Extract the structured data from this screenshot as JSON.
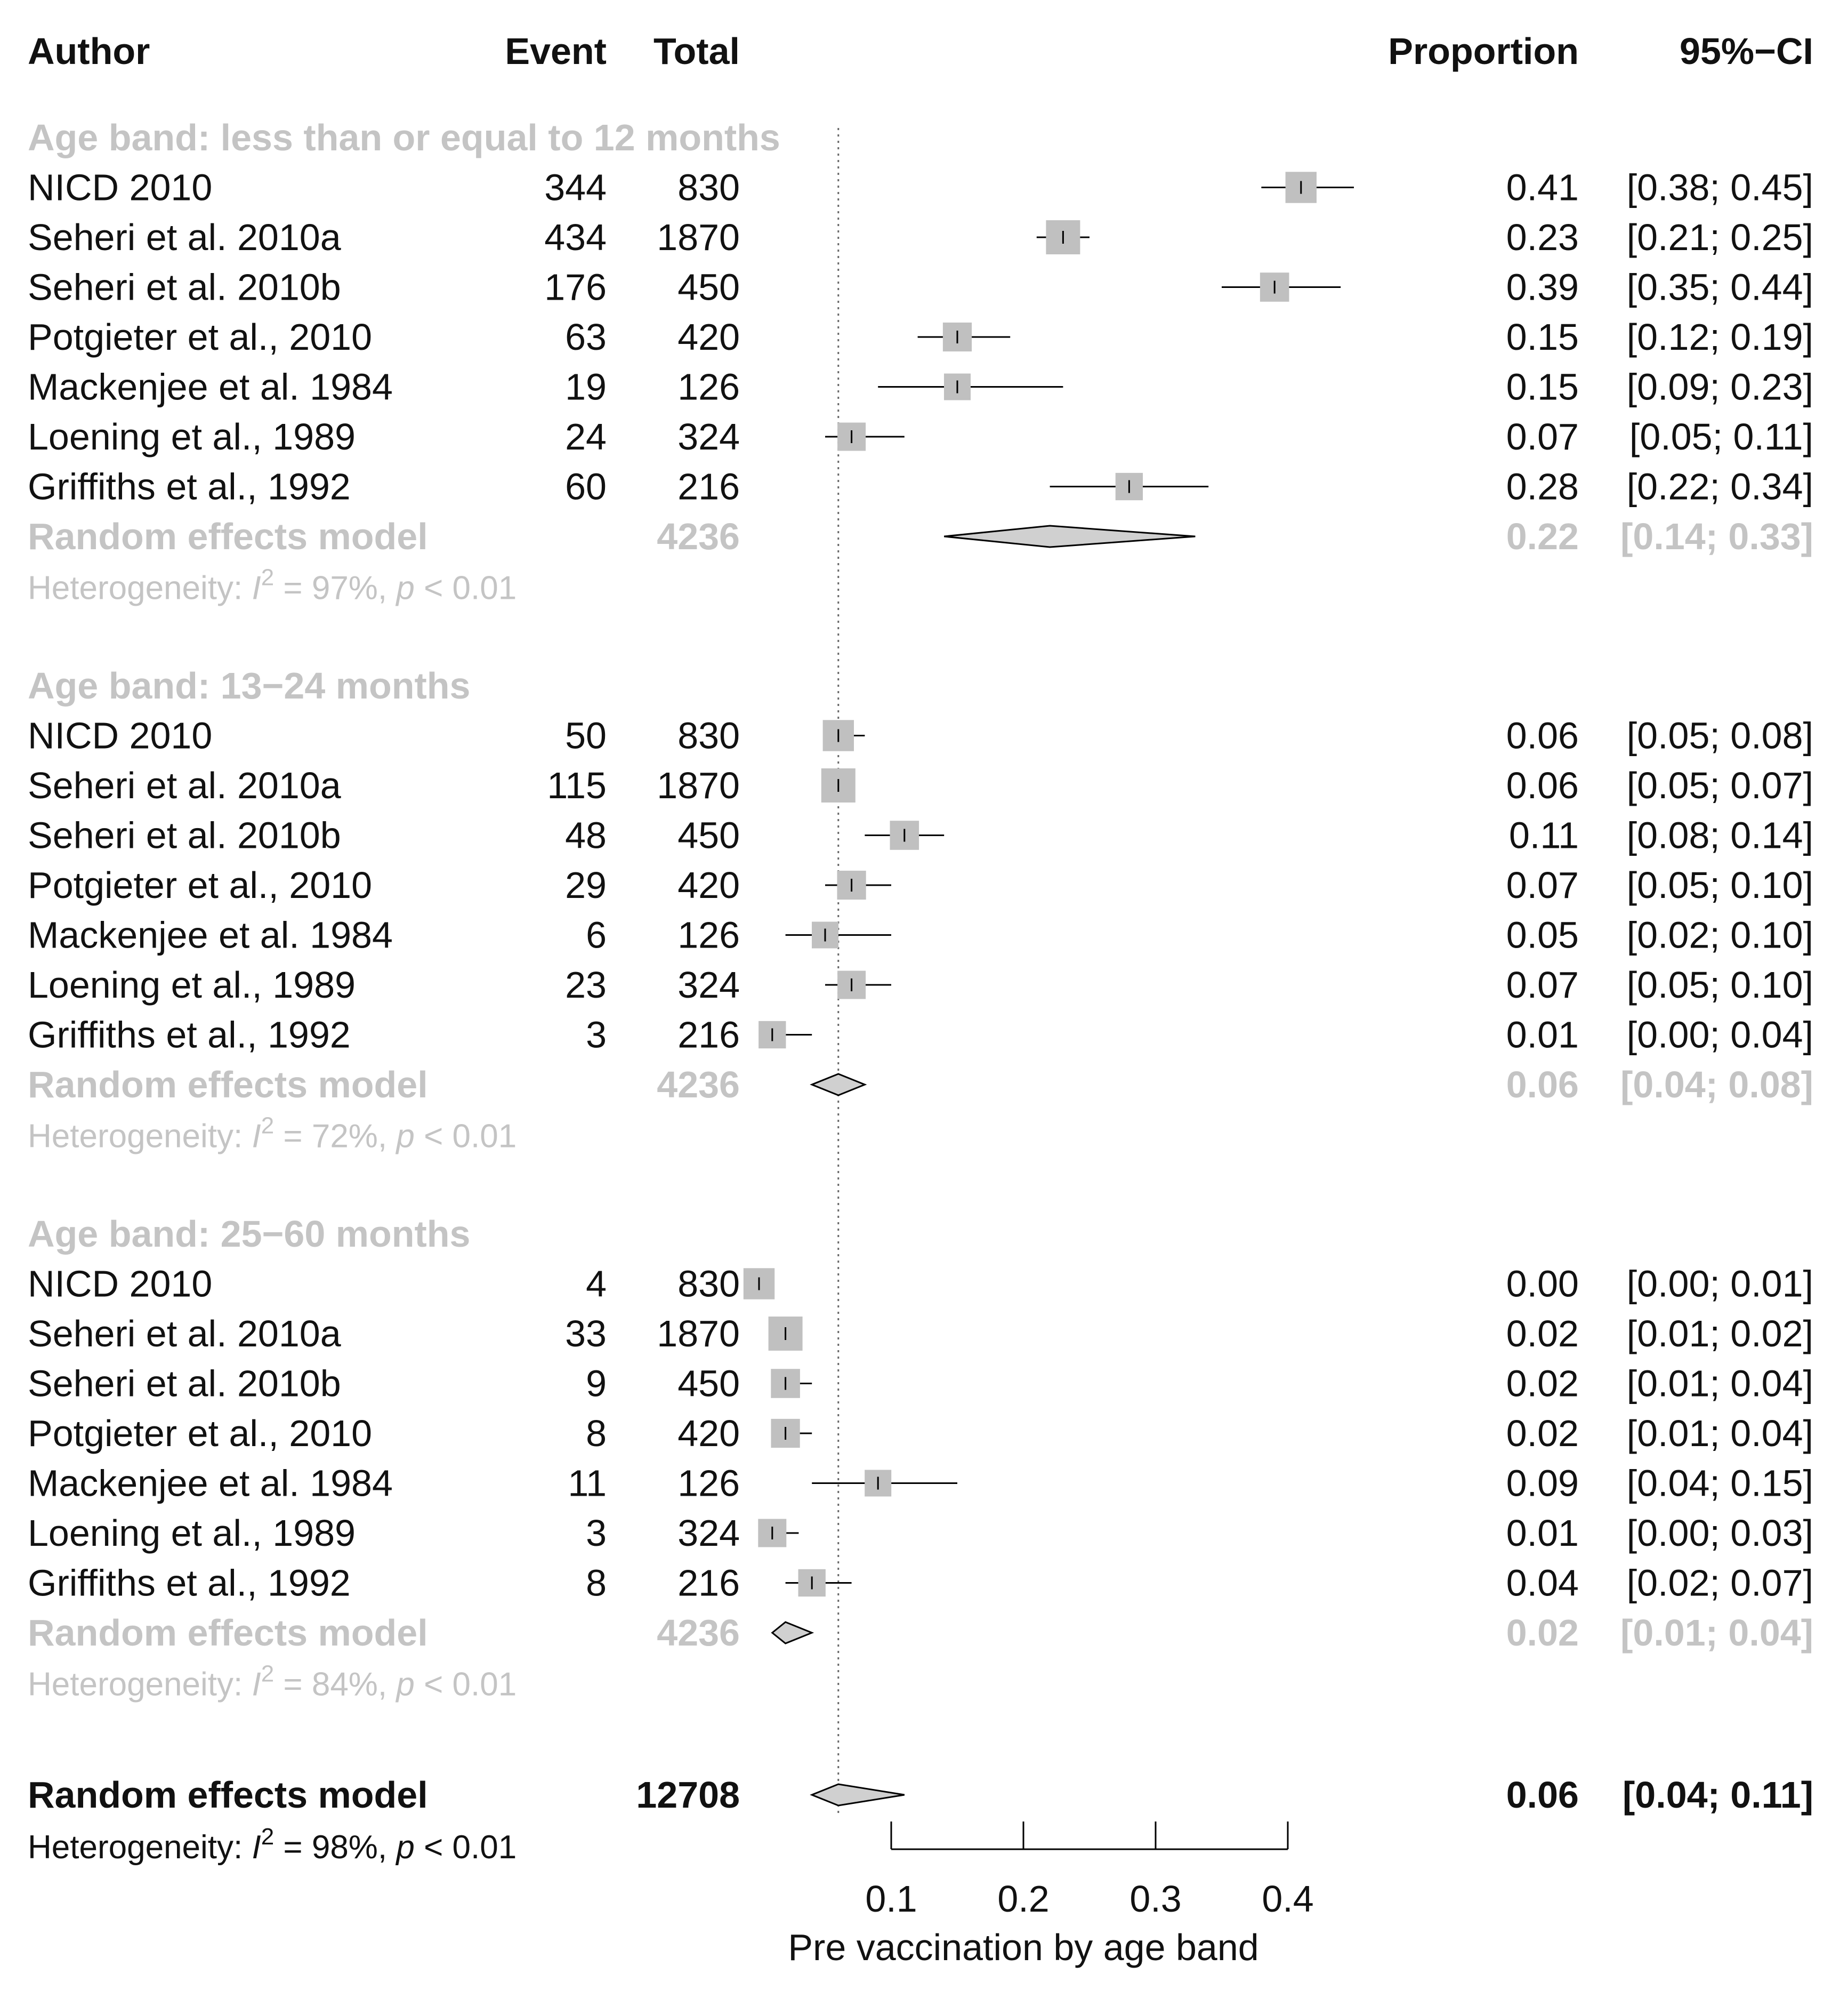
{
  "chart_data": {
    "type": "forest",
    "headers": {
      "author": "Author",
      "event": "Event",
      "total": "Total",
      "proportion": "Proportion",
      "ci": "95%−CI"
    },
    "groups": [
      {
        "label": "Age band: less than or equal to 12 months",
        "studies": [
          {
            "author": "NICD 2010",
            "event": "344",
            "total": "830",
            "prop": 0.41,
            "lo": 0.38,
            "hi": 0.45,
            "prop_text": "0.41",
            "ci_text": "[0.38; 0.45]"
          },
          {
            "author": "Seheri et al. 2010a",
            "event": "434",
            "total": "1870",
            "prop": 0.23,
            "lo": 0.21,
            "hi": 0.25,
            "prop_text": "0.23",
            "ci_text": "[0.21; 0.25]"
          },
          {
            "author": "Seheri et al. 2010b",
            "event": "176",
            "total": "450",
            "prop": 0.39,
            "lo": 0.35,
            "hi": 0.44,
            "prop_text": "0.39",
            "ci_text": "[0.35; 0.44]"
          },
          {
            "author": "Potgieter et al., 2010",
            "event": "63",
            "total": "420",
            "prop": 0.15,
            "lo": 0.12,
            "hi": 0.19,
            "prop_text": "0.15",
            "ci_text": "[0.12; 0.19]"
          },
          {
            "author": "Mackenjee et al. 1984",
            "event": "19",
            "total": "126",
            "prop": 0.15,
            "lo": 0.09,
            "hi": 0.23,
            "prop_text": "0.15",
            "ci_text": "[0.09; 0.23]"
          },
          {
            "author": "Loening et al., 1989",
            "event": "24",
            "total": "324",
            "prop": 0.07,
            "lo": 0.05,
            "hi": 0.11,
            "prop_text": "0.07",
            "ci_text": "[0.05; 0.11]"
          },
          {
            "author": "Griffiths et al., 1992",
            "event": "60",
            "total": "216",
            "prop": 0.28,
            "lo": 0.22,
            "hi": 0.34,
            "prop_text": "0.28",
            "ci_text": "[0.22; 0.34]"
          }
        ],
        "model": {
          "label": "Random effects model",
          "total": "4236",
          "prop": 0.22,
          "lo": 0.14,
          "hi": 0.33,
          "prop_text": "0.22",
          "ci_text": "[0.14; 0.33]"
        },
        "heterogeneity": {
          "prefix": "Heterogeneity: ",
          "i": "I",
          "sup": "2",
          "mid": " = 97%, ",
          "p": "p",
          "suffix": " < 0.01"
        }
      },
      {
        "label": "Age band: 13−24 months",
        "studies": [
          {
            "author": "NICD 2010",
            "event": "50",
            "total": "830",
            "prop": 0.06,
            "lo": 0.05,
            "hi": 0.08,
            "prop_text": "0.06",
            "ci_text": "[0.05; 0.08]"
          },
          {
            "author": "Seheri et al. 2010a",
            "event": "115",
            "total": "1870",
            "prop": 0.06,
            "lo": 0.05,
            "hi": 0.07,
            "prop_text": "0.06",
            "ci_text": "[0.05; 0.07]"
          },
          {
            "author": "Seheri et al. 2010b",
            "event": "48",
            "total": "450",
            "prop": 0.11,
            "lo": 0.08,
            "hi": 0.14,
            "prop_text": "0.11",
            "ci_text": "[0.08; 0.14]"
          },
          {
            "author": "Potgieter et al., 2010",
            "event": "29",
            "total": "420",
            "prop": 0.07,
            "lo": 0.05,
            "hi": 0.1,
            "prop_text": "0.07",
            "ci_text": "[0.05; 0.10]"
          },
          {
            "author": "Mackenjee et al. 1984",
            "event": "6",
            "total": "126",
            "prop": 0.05,
            "lo": 0.02,
            "hi": 0.1,
            "prop_text": "0.05",
            "ci_text": "[0.02; 0.10]"
          },
          {
            "author": "Loening et al., 1989",
            "event": "23",
            "total": "324",
            "prop": 0.07,
            "lo": 0.05,
            "hi": 0.1,
            "prop_text": "0.07",
            "ci_text": "[0.05; 0.10]"
          },
          {
            "author": "Griffiths et al., 1992",
            "event": "3",
            "total": "216",
            "prop": 0.01,
            "lo": 0.0,
            "hi": 0.04,
            "prop_text": "0.01",
            "ci_text": "[0.00; 0.04]"
          }
        ],
        "model": {
          "label": "Random effects model",
          "total": "4236",
          "prop": 0.06,
          "lo": 0.04,
          "hi": 0.08,
          "prop_text": "0.06",
          "ci_text": "[0.04; 0.08]"
        },
        "heterogeneity": {
          "prefix": "Heterogeneity: ",
          "i": "I",
          "sup": "2",
          "mid": " = 72%, ",
          "p": "p",
          "suffix": " < 0.01"
        }
      },
      {
        "label": "Age band: 25−60 months",
        "studies": [
          {
            "author": "NICD 2010",
            "event": "4",
            "total": "830",
            "prop": 0.0,
            "lo": 0.0,
            "hi": 0.01,
            "prop_text": "0.00",
            "ci_text": "[0.00; 0.01]"
          },
          {
            "author": "Seheri et al. 2010a",
            "event": "33",
            "total": "1870",
            "prop": 0.02,
            "lo": 0.01,
            "hi": 0.02,
            "prop_text": "0.02",
            "ci_text": "[0.01; 0.02]"
          },
          {
            "author": "Seheri et al. 2010b",
            "event": "9",
            "total": "450",
            "prop": 0.02,
            "lo": 0.01,
            "hi": 0.04,
            "prop_text": "0.02",
            "ci_text": "[0.01; 0.04]"
          },
          {
            "author": "Potgieter et al., 2010",
            "event": "8",
            "total": "420",
            "prop": 0.02,
            "lo": 0.01,
            "hi": 0.04,
            "prop_text": "0.02",
            "ci_text": "[0.01; 0.04]"
          },
          {
            "author": "Mackenjee et al. 1984",
            "event": "11",
            "total": "126",
            "prop": 0.09,
            "lo": 0.04,
            "hi": 0.15,
            "prop_text": "0.09",
            "ci_text": "[0.04; 0.15]"
          },
          {
            "author": "Loening et al., 1989",
            "event": "3",
            "total": "324",
            "prop": 0.01,
            "lo": 0.0,
            "hi": 0.03,
            "prop_text": "0.01",
            "ci_text": "[0.00; 0.03]"
          },
          {
            "author": "Griffiths et al., 1992",
            "event": "8",
            "total": "216",
            "prop": 0.04,
            "lo": 0.02,
            "hi": 0.07,
            "prop_text": "0.04",
            "ci_text": "[0.02; 0.07]"
          }
        ],
        "model": {
          "label": "Random effects model",
          "total": "4236",
          "prop": 0.02,
          "lo": 0.01,
          "hi": 0.04,
          "prop_text": "0.02",
          "ci_text": "[0.01; 0.04]"
        },
        "heterogeneity": {
          "prefix": "Heterogeneity: ",
          "i": "I",
          "sup": "2",
          "mid": " = 84%, ",
          "p": "p",
          "suffix": " < 0.01"
        }
      }
    ],
    "overall": {
      "label": "Random effects model",
      "total": "12708",
      "prop": 0.06,
      "lo": 0.04,
      "hi": 0.11,
      "prop_text": "0.06",
      "ci_text": "[0.04; 0.11]",
      "heterogeneity": {
        "prefix": "Heterogeneity: ",
        "i": "I",
        "sup": "2",
        "mid": " = 98%, ",
        "p": "p",
        "suffix": " < 0.01"
      }
    },
    "reference_line": 0.06,
    "x_axis": {
      "ticks": [
        0.1,
        0.2,
        0.3,
        0.4
      ],
      "tick_labels": [
        "0.1",
        "0.2",
        "0.3",
        "0.4"
      ],
      "label": "Pre vaccination by age band"
    },
    "colors": {
      "text": "#111111",
      "subgroup_gray": "#c4c4c4",
      "square_fill": "#c0c0c0",
      "diamond_fill": "#d0d0d0",
      "line": "#000000"
    }
  }
}
